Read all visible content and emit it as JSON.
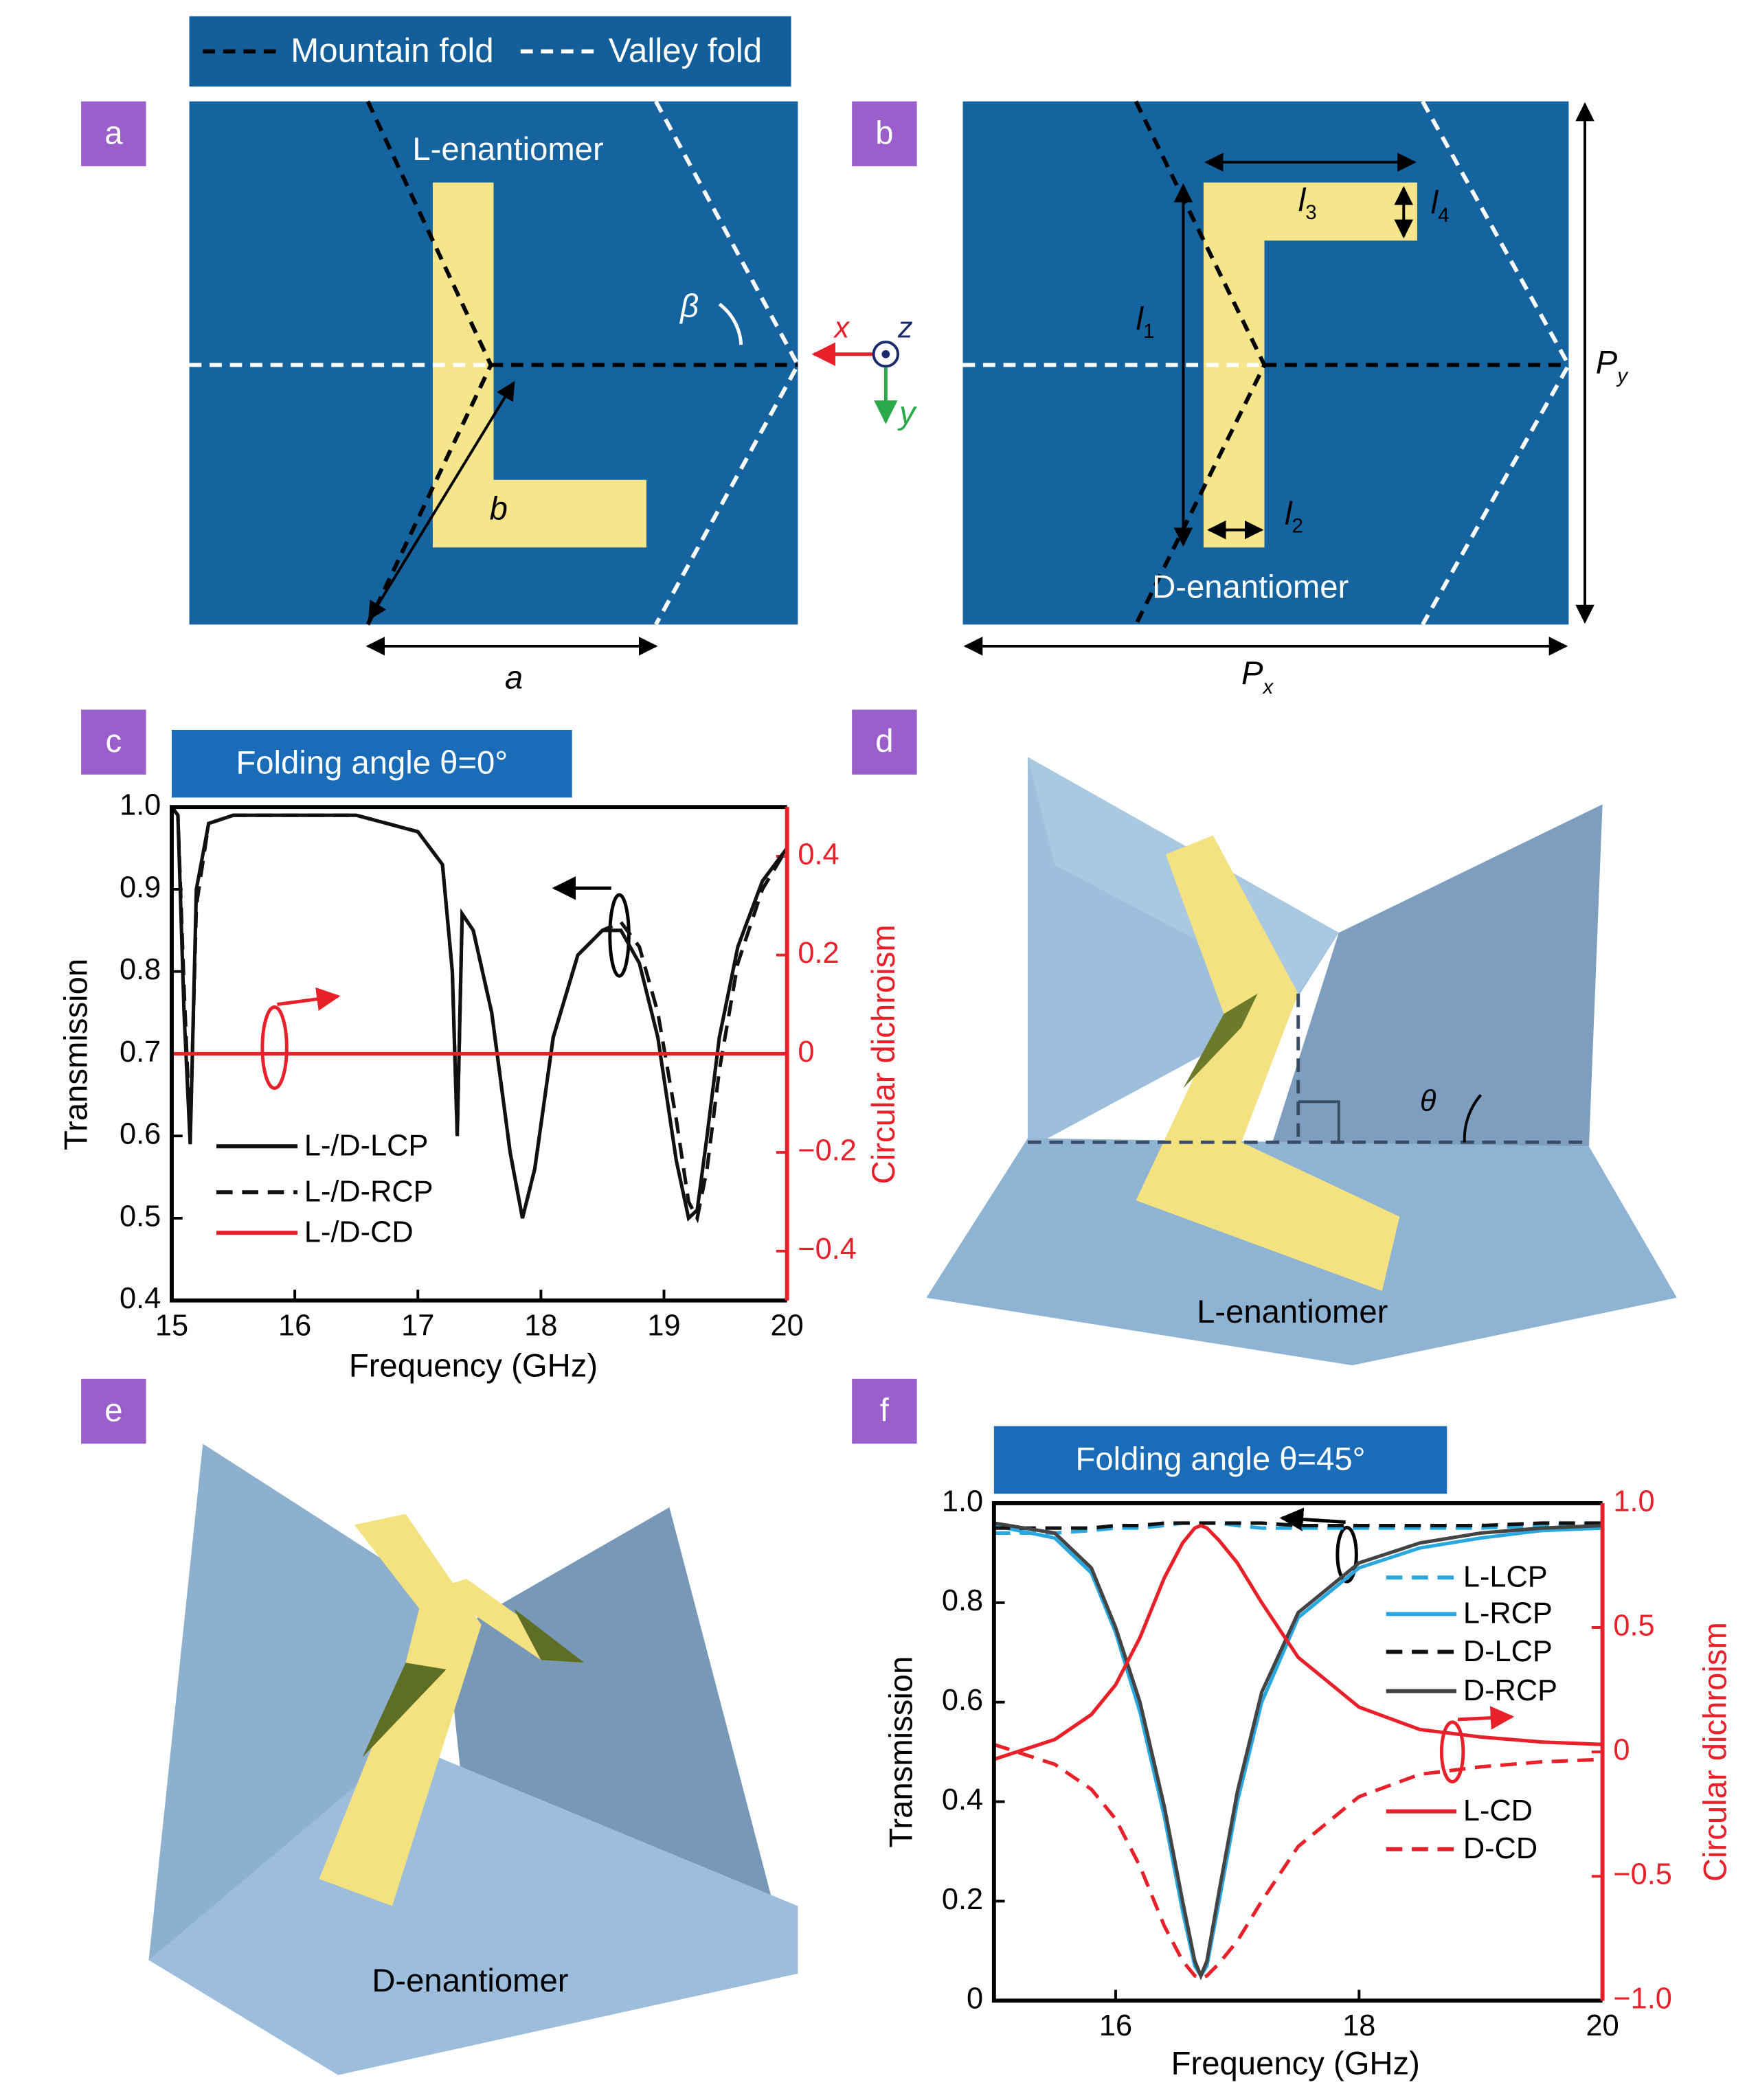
{
  "fold_legend": {
    "mountain_fold": "Mountain fold",
    "valley_fold": "Valley fold"
  },
  "panel_labels": [
    "a",
    "b",
    "c",
    "d",
    "e",
    "f"
  ],
  "panel_a": {
    "label": "L-enantiomer",
    "beta": "β",
    "b": "b",
    "a": "a"
  },
  "axes_glyph": {
    "x": "x",
    "y": "y",
    "z": "z"
  },
  "panel_b": {
    "label": "D-enantiomer",
    "l1": {
      "symbol": "l",
      "subscript": "1"
    },
    "l2": {
      "symbol": "l",
      "subscript": "2"
    },
    "l3": {
      "symbol": "l",
      "subscript": "3"
    },
    "l4": {
      "symbol": "l",
      "subscript": "4"
    },
    "px": {
      "symbol": "P",
      "subscript": "x"
    },
    "py": {
      "symbol": "P",
      "subscript": "y"
    }
  },
  "panel_d": {
    "label": "L-enantiomer",
    "theta": "θ"
  },
  "panel_e": {
    "label": "D-enantiomer"
  },
  "chart_data": [
    {
      "type": "line",
      "title": "Folding angle θ=0°",
      "x_label": "Frequency (GHz)",
      "y_label": "Transmission",
      "y2_label": "Circular dichroism",
      "x": [
        15,
        15.05,
        15.1,
        15.15,
        15.2,
        15.3,
        15.5,
        16,
        16.5,
        17,
        17.2,
        17.28,
        17.32,
        17.36,
        17.45,
        17.6,
        17.75,
        17.85,
        17.95,
        18.1,
        18.3,
        18.5,
        18.65,
        18.8,
        18.95,
        19.1,
        19.2,
        19.27,
        19.35,
        19.45,
        19.6,
        19.8,
        20
      ],
      "series": [
        {
          "name": "L-/D-LCP",
          "color": "#111111",
          "line_style": "solid",
          "values": [
            1.0,
            0.99,
            0.75,
            0.59,
            0.9,
            0.98,
            0.99,
            0.99,
            0.99,
            0.97,
            0.93,
            0.8,
            0.6,
            0.87,
            0.85,
            0.75,
            0.58,
            0.5,
            0.56,
            0.72,
            0.82,
            0.85,
            0.85,
            0.81,
            0.72,
            0.57,
            0.5,
            0.51,
            0.6,
            0.72,
            0.83,
            0.91,
            0.95
          ]
        },
        {
          "name": "L-/D-RCP",
          "color": "#111111",
          "line_style": "dashed",
          "values": [
            1.0,
            0.99,
            0.78,
            0.6,
            0.88,
            0.98,
            0.99,
            0.99,
            0.99,
            0.97,
            0.93,
            0.8,
            0.6,
            0.87,
            0.85,
            0.75,
            0.58,
            0.5,
            0.56,
            0.72,
            0.82,
            0.85,
            0.86,
            0.83,
            0.75,
            0.62,
            0.52,
            0.5,
            0.56,
            0.68,
            0.81,
            0.9,
            0.95
          ]
        },
        {
          "name": "L-/D-CD",
          "color": "#e8202a",
          "line_style": "solid",
          "axis": "y2",
          "values": [
            0,
            0,
            0,
            0,
            0,
            0,
            0,
            0,
            0,
            0,
            0,
            0,
            0,
            0,
            0,
            0,
            0,
            0,
            0,
            0,
            0,
            0,
            0,
            0,
            0,
            0,
            0,
            0,
            0,
            0,
            0,
            0,
            0
          ]
        }
      ],
      "xlim": [
        15,
        20
      ],
      "xticks": [
        15,
        16,
        17,
        18,
        19,
        20
      ],
      "ylim": [
        0.4,
        1.0
      ],
      "yticks": [
        0.4,
        0.5,
        0.6,
        0.7,
        0.8,
        0.9,
        {
          "value": 1,
          "label": "1.0"
        }
      ],
      "y2lim": [
        -0.5,
        0.5
      ],
      "y2ticks": [
        {
          "value": -0.4,
          "label": "−0.4"
        },
        {
          "value": -0.2,
          "label": "−0.2"
        },
        0,
        0.2,
        0.4
      ],
      "y2_color": "#e8202a"
    },
    {
      "type": "line",
      "title": "Folding angle θ=45°",
      "x_label": "Frequency (GHz)",
      "y_label": "Transmission",
      "y2_label": "Circular dichroism",
      "x": [
        15,
        15.5,
        15.8,
        16,
        16.2,
        16.4,
        16.55,
        16.65,
        16.7,
        16.75,
        16.85,
        17,
        17.2,
        17.5,
        18,
        18.5,
        19,
        19.5,
        20
      ],
      "series": [
        {
          "name": "L-LCP",
          "color": "#29a8e0",
          "line_style": "dashed",
          "values": [
            0.94,
            0.94,
            0.945,
            0.95,
            0.95,
            0.955,
            0.96,
            0.96,
            0.96,
            0.96,
            0.96,
            0.955,
            0.95,
            0.95,
            0.95,
            0.95,
            0.95,
            0.955,
            0.96
          ]
        },
        {
          "name": "L-RCP",
          "color": "#29a8e0",
          "line_style": "solid",
          "values": [
            0.955,
            0.93,
            0.86,
            0.74,
            0.58,
            0.37,
            0.18,
            0.07,
            0.05,
            0.07,
            0.2,
            0.4,
            0.6,
            0.77,
            0.87,
            0.91,
            0.93,
            0.945,
            0.95
          ]
        },
        {
          "name": "D-LCP",
          "color": "#111111",
          "line_style": "dashed",
          "values": [
            0.95,
            0.95,
            0.95,
            0.955,
            0.955,
            0.96,
            0.96,
            0.96,
            0.96,
            0.96,
            0.96,
            0.96,
            0.96,
            0.955,
            0.955,
            0.955,
            0.955,
            0.96,
            0.96
          ]
        },
        {
          "name": "D-RCP",
          "color": "#444444",
          "line_style": "solid",
          "values": [
            0.96,
            0.94,
            0.87,
            0.75,
            0.6,
            0.39,
            0.2,
            0.08,
            0.05,
            0.08,
            0.22,
            0.42,
            0.62,
            0.78,
            0.88,
            0.92,
            0.94,
            0.95,
            0.955
          ]
        },
        {
          "name": "L-CD",
          "color": "#e8202a",
          "line_style": "solid",
          "axis": "y2",
          "values": [
            -0.03,
            0.05,
            0.15,
            0.27,
            0.46,
            0.7,
            0.84,
            0.9,
            0.91,
            0.9,
            0.85,
            0.76,
            0.6,
            0.38,
            0.18,
            0.09,
            0.06,
            0.04,
            0.03
          ]
        },
        {
          "name": "D-CD",
          "color": "#e8202a",
          "line_style": "dashed",
          "axis": "y2",
          "values": [
            0.03,
            -0.05,
            -0.15,
            -0.27,
            -0.46,
            -0.7,
            -0.84,
            -0.9,
            -0.91,
            -0.9,
            -0.85,
            -0.76,
            -0.6,
            -0.38,
            -0.18,
            -0.09,
            -0.06,
            -0.04,
            -0.03
          ]
        }
      ],
      "xlim": [
        15,
        20
      ],
      "xticks": [
        16,
        18,
        20
      ],
      "ylim": [
        0,
        1.0
      ],
      "yticks": [
        0,
        0.2,
        0.4,
        0.6,
        0.8,
        {
          "value": 1,
          "label": "1.0"
        }
      ],
      "y2lim": [
        -1,
        1
      ],
      "y2ticks": [
        {
          "value": -1,
          "label": "−1.0"
        },
        {
          "value": -0.5,
          "label": "−0.5"
        },
        0,
        0.5,
        {
          "value": 1,
          "label": "1.0"
        }
      ],
      "y2_color": "#e8202a"
    }
  ]
}
